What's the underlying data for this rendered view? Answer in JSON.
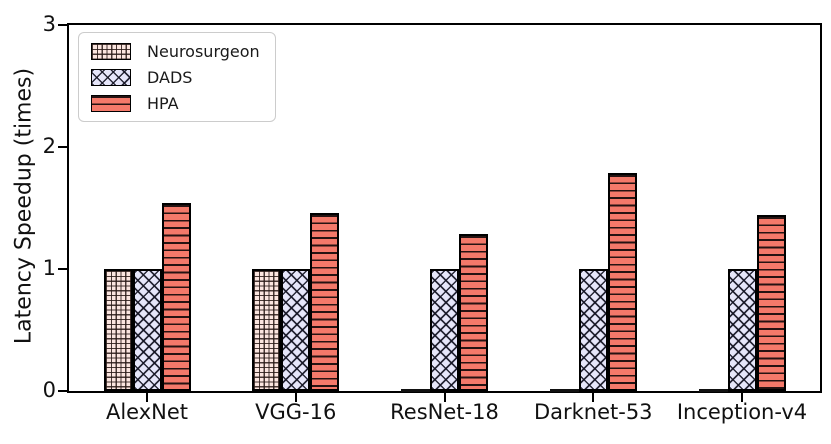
{
  "chart_data": {
    "type": "bar",
    "title": "",
    "xlabel": "",
    "ylabel": "Latency Speedup (times)",
    "ylim": [
      0,
      3
    ],
    "yticks": [
      0,
      1,
      2,
      3
    ],
    "grid": false,
    "legend_position": "upper-left",
    "categories": [
      "AlexNet",
      "VGG-16",
      "ResNet-18",
      "Darknet-53",
      "Inception-v4"
    ],
    "series": [
      {
        "name": "Neurosurgeon",
        "values": [
          1.0,
          1.0,
          0,
          0,
          0
        ],
        "fill": "#FBE5DF",
        "hatch": "grid",
        "edge": "#000000"
      },
      {
        "name": "DADS",
        "values": [
          1.0,
          1.0,
          1.0,
          1.0,
          1.0
        ],
        "fill": "#E6E6FA",
        "hatch": "cross",
        "edge": "#000000"
      },
      {
        "name": "HPA",
        "values": [
          1.54,
          1.46,
          1.29,
          1.79,
          1.44
        ],
        "fill": "#F4796A",
        "hatch": "horizontal",
        "edge": "#000000"
      }
    ]
  }
}
